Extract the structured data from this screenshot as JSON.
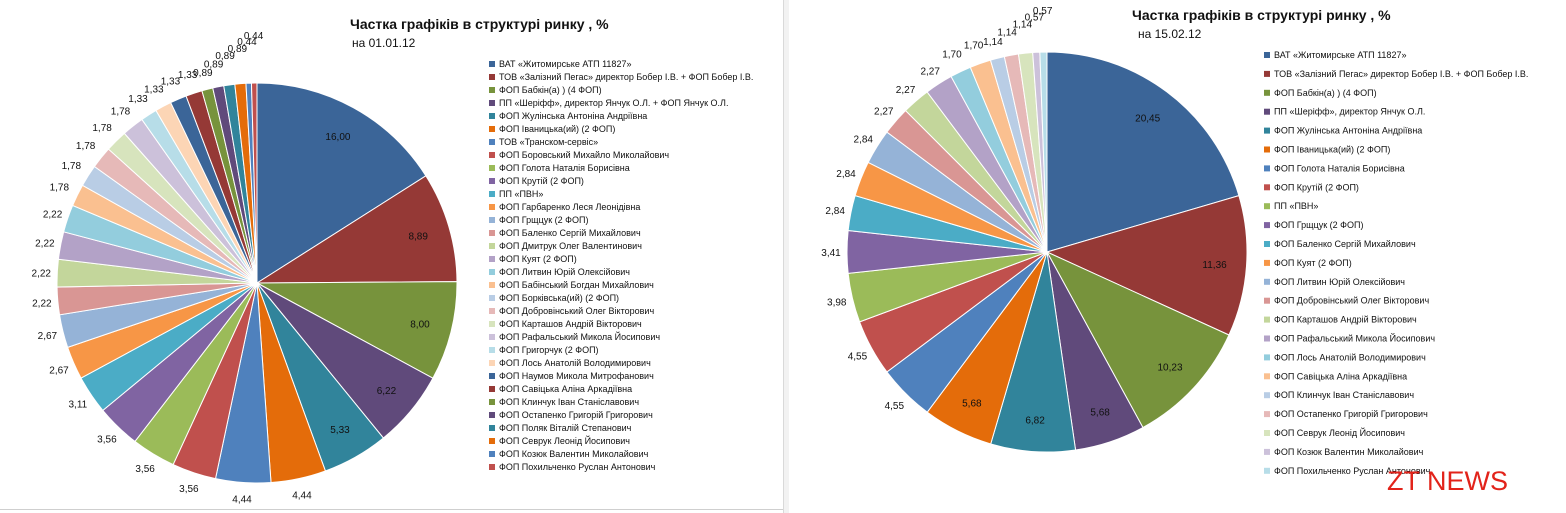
{
  "colors": [
    "#3b6598",
    "#953936",
    "#77933c",
    "#604a7b",
    "#31849b",
    "#e46c0a",
    "#4f81bd",
    "#c0504d",
    "#9bbb59",
    "#8064a2",
    "#4bacc6",
    "#f79646",
    "#95b3d7",
    "#d99694",
    "#c3d69b",
    "#b3a2c7",
    "#93cddd",
    "#fac090",
    "#b9cde5",
    "#e6b9b8",
    "#d7e4bd",
    "#ccc1da",
    "#b7dde8",
    "#fcd5b5"
  ],
  "watermark": "ZT NEWS",
  "chart_data": [
    {
      "type": "pie",
      "title": "Частка  графіків в структурі  ринку , %",
      "subtitle": "на 01.01.12",
      "legend_position": "right",
      "labels": [
        "ВАТ «Житомирське АТП 11827»",
        "ТОВ «Залізний Пегас» директор Бобер І.В.  + ФОП Бобер І.В.",
        "ФОП Бабкін(а) ) (4 ФОП)",
        "ПП «Шерiфф», директор Янчук О.Л. + ФОП Янчук О.Л.",
        "ФОП Жулінська Антоніна Андріївна",
        "ФОП Іваницька(ий) (2 ФОП)",
        "ТОВ «Транском-сервіс»",
        "ФОП Боровський Михайло Миколайович",
        "ФОП Голота Наталія Борисівна",
        "ФОП Крутій (2 ФОП)",
        "ПП «ПВН»",
        "ФОП Гарбаренко Леся Леонідівна",
        "ФОП Грщцук (2 ФОП)",
        "ФОП Баленко Сергій Михайлович",
        "ФОП Дмитрук Олег Валентинович",
        "ФОП Куят (2 ФОП)",
        "ФОП Литвин Юрій Олексійович",
        "ФОП Бабінський Богдан Михайлович",
        "ФОП Борківська(ий) (2 ФОП)",
        "ФОП Добровінський Олег Вікторович",
        "ФОП Карташов Андрій Вікторович",
        "ФОП Рафальський Микола Йосипович",
        "ФОП Григорчук  (2 ФОП)",
        "ФОП Лось Анатолій Володимирович",
        "ФОП Наумов Микола Митрофанович",
        "ФОП Савіцька Аліна Аркадіївна",
        "ФОП Клинчук Іван Станіславович",
        "ФОП Остапенко Григорій Григорович",
        "ФОП Поляк Віталій Степанович",
        "ФОП Севрук Леонід Йосипович",
        "ФОП Козюк Валентин Миколайович",
        "ФОП Похильченко Руслан Антонович"
      ],
      "values": [
        16.0,
        8.89,
        8.0,
        6.22,
        5.33,
        4.44,
        4.44,
        3.56,
        3.56,
        3.56,
        3.11,
        2.67,
        2.67,
        2.22,
        2.22,
        2.22,
        2.22,
        1.78,
        1.78,
        1.78,
        1.78,
        1.78,
        1.33,
        1.33,
        1.33,
        1.33,
        0.89,
        0.89,
        0.89,
        0.89,
        0.44,
        0.44
      ],
      "value_labels": [
        "16,00",
        "8,89",
        "8,00",
        "6,22",
        "5,33",
        "4,44",
        "4,44",
        "3,56",
        "3,56",
        "3,56",
        "3,11",
        "2,67",
        "2,67",
        "2,22",
        "2,22",
        "2,22",
        "2,22",
        "1,78",
        "1,78",
        "1,78",
        "1,78",
        "1,78",
        "1,33",
        "1,33",
        "1,33",
        "1,33",
        "0,89",
        "0,89",
        "0,89",
        "0,89",
        "0,44",
        "0,44"
      ]
    },
    {
      "type": "pie",
      "title": "Частка  графіків в структурі  ринку , %",
      "subtitle": "на 15.02.12",
      "legend_position": "right",
      "labels": [
        "ВАТ «Житомирське АТП 11827»",
        "ТОВ «Залізний Пегас» директор Бобер І.В.  + ФОП Бобер І.В.",
        "ФОП Бабкін(а) ) (4 ФОП)",
        "ПП «Шерiфф», директор Янчук О.Л.",
        "ФОП Жулінська Антоніна Андріївна",
        "ФОП Іваницька(ий) (2 ФОП)",
        "ФОП Голота Наталія Борисівна",
        "ФОП Крутій (2 ФОП)",
        "ПП «ПВН»",
        "ФОП Грщцук (2 ФОП)",
        "ФОП Баленко Сергій Михайлович",
        "ФОП Куят (2 ФОП)",
        "ФОП Литвин Юрій Олексійович",
        "ФОП Добровінський Олег Вікторович",
        "ФОП Карташов Андрій Вікторович",
        "ФОП Рафальський Микола Йосипович",
        "ФОП Лось Анатолій Володимирович",
        "ФОП Савіцька Аліна Аркадіївна",
        "ФОП Клинчук Іван Станіславович",
        "ФОП Остапенко Григорій Григорович",
        "ФОП Севрук Леонід Йосипович",
        "ФОП Козюк Валентин Миколайович",
        "ФОП Похильченко Руслан Антонович"
      ],
      "values": [
        20.45,
        11.36,
        10.23,
        5.68,
        6.82,
        5.68,
        4.55,
        4.55,
        3.98,
        3.41,
        2.84,
        2.84,
        2.84,
        2.27,
        2.27,
        2.27,
        1.7,
        1.7,
        1.14,
        1.14,
        1.14,
        0.57,
        0.57
      ],
      "value_labels": [
        "20,45",
        "11,36",
        "10,23",
        "5,68",
        "6,82",
        "5,68",
        "4,55",
        "4,55",
        "3,98",
        "3,41",
        "2,84",
        "2,84",
        "2,84",
        "2,27",
        "2,27",
        "2,27",
        "1,70",
        "1,70",
        "1,14",
        "1,14",
        "1,14",
        "0,57",
        "0,57"
      ]
    }
  ]
}
